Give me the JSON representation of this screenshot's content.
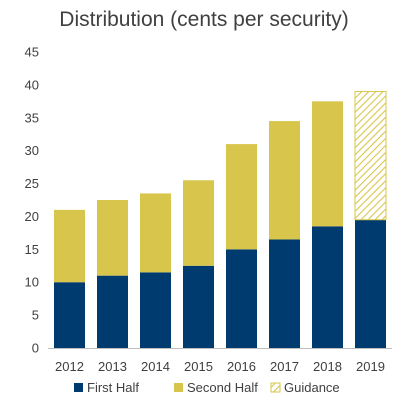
{
  "chart_data": {
    "type": "bar",
    "stacked": true,
    "title": "Distribution (cents per security)",
    "xlabel": "",
    "ylabel": "",
    "ylim": [
      0,
      45
    ],
    "yticks": [
      0,
      5,
      10,
      15,
      20,
      25,
      30,
      35,
      40,
      45
    ],
    "grid": false,
    "legend_position": "bottom",
    "categories": [
      "2012",
      "2013",
      "2014",
      "2015",
      "2016",
      "2017",
      "2018",
      "2019"
    ],
    "series": [
      {
        "name": "First Half",
        "color": "#003B6F",
        "pattern": "solid",
        "values": [
          10,
          11,
          11.5,
          12.5,
          15,
          16.5,
          18.5,
          19.5
        ]
      },
      {
        "name": "Second Half",
        "color": "#D8C64C",
        "pattern": "solid",
        "values": [
          11,
          11.5,
          12,
          13,
          16,
          18,
          19,
          null
        ]
      },
      {
        "name": "Guidance",
        "color": "#D8C64C",
        "pattern": "hatched",
        "values": [
          null,
          null,
          null,
          null,
          null,
          null,
          null,
          19.5
        ]
      }
    ]
  }
}
